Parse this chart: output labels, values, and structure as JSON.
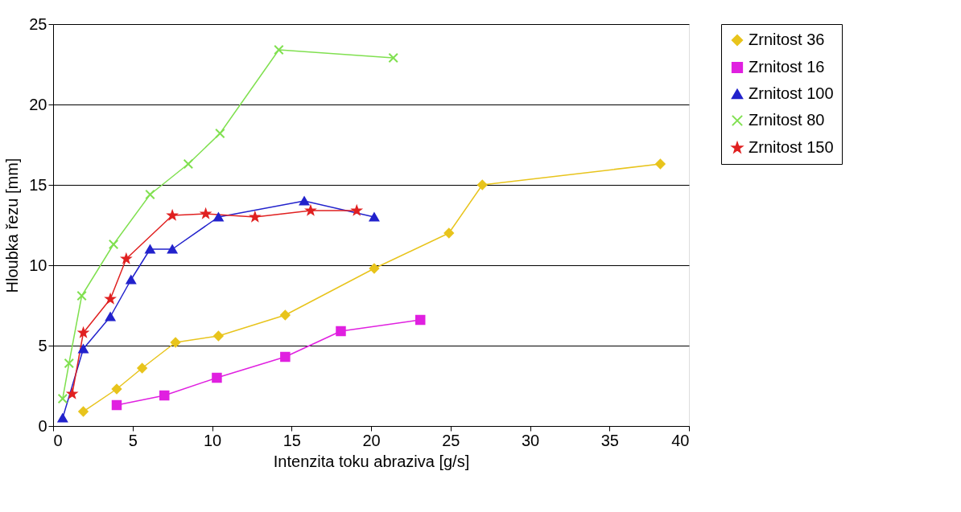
{
  "chart_data": {
    "type": "line",
    "xlabel": "Intenzita toku abraziva [g/s]",
    "ylabel": "Hloubka řezu [mm]",
    "xlim": [
      0,
      40
    ],
    "xticks": [
      0,
      5,
      10,
      15,
      20,
      25,
      30,
      35,
      40
    ],
    "ylim": [
      0,
      25
    ],
    "yticks": [
      0,
      5,
      10,
      15,
      20,
      25
    ],
    "grid": "y",
    "legend": "right",
    "series": [
      {
        "name": "Zrnitost 36",
        "color": "#e8c41c",
        "marker": "diamond",
        "x": [
          1.9,
          4.0,
          5.6,
          7.7,
          10.4,
          14.6,
          20.2,
          24.9,
          27.0,
          38.2
        ],
        "values": [
          0.9,
          2.3,
          3.6,
          5.2,
          5.6,
          6.9,
          9.8,
          12.0,
          15.0,
          16.3
        ]
      },
      {
        "name": "Zrnitost 16",
        "color": "#e020e0",
        "marker": "square",
        "x": [
          4.0,
          7.0,
          10.3,
          14.6,
          18.1,
          23.1
        ],
        "values": [
          1.3,
          1.9,
          3.0,
          4.3,
          5.9,
          6.6
        ]
      },
      {
        "name": "Zrnitost 100",
        "color": "#2222cc",
        "marker": "triangle",
        "x": [
          0.6,
          1.9,
          3.6,
          4.9,
          6.1,
          7.5,
          10.4,
          15.8,
          20.2
        ],
        "values": [
          0.5,
          4.8,
          6.8,
          9.1,
          11.0,
          11.0,
          13.0,
          14.0,
          13.0
        ]
      },
      {
        "name": "Zrnitost 80",
        "color": "#80e050",
        "marker": "cross",
        "x": [
          0.6,
          1.0,
          1.8,
          3.8,
          6.1,
          8.5,
          10.5,
          14.2,
          21.4
        ],
        "values": [
          1.7,
          3.9,
          8.1,
          11.3,
          14.4,
          16.3,
          18.2,
          23.4,
          22.9
        ]
      },
      {
        "name": "Zrnitost 150",
        "color": "#e02020",
        "marker": "star",
        "x": [
          1.2,
          1.9,
          3.6,
          4.6,
          7.5,
          9.6,
          12.7,
          16.2,
          19.1
        ],
        "values": [
          2.0,
          5.8,
          7.9,
          10.4,
          13.1,
          13.2,
          13.0,
          13.4,
          13.4
        ]
      }
    ]
  }
}
